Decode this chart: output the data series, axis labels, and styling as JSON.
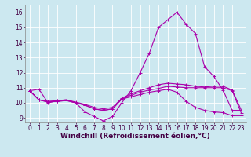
{
  "xlabel": "Windchill (Refroidissement éolien,°C)",
  "xlim": [
    -0.5,
    23.5
  ],
  "ylim": [
    8.7,
    16.5
  ],
  "yticks": [
    9,
    10,
    11,
    12,
    13,
    14,
    15,
    16
  ],
  "xticks": [
    0,
    1,
    2,
    3,
    4,
    5,
    6,
    7,
    8,
    9,
    10,
    11,
    12,
    13,
    14,
    15,
    16,
    17,
    18,
    19,
    20,
    21,
    22,
    23
  ],
  "bg_color": "#cce8f0",
  "line_color": "#aa00aa",
  "grid_color": "#ffffff",
  "lines": [
    [
      10.8,
      10.9,
      10.0,
      10.15,
      10.2,
      10.0,
      9.4,
      9.1,
      8.8,
      9.1,
      10.0,
      10.8,
      12.0,
      13.3,
      15.0,
      15.5,
      16.0,
      15.2,
      14.6,
      12.4,
      11.75,
      10.85,
      9.5,
      9.5
    ],
    [
      10.8,
      10.2,
      10.1,
      10.15,
      10.2,
      10.05,
      9.9,
      9.7,
      9.6,
      9.7,
      10.3,
      10.6,
      10.8,
      11.0,
      11.2,
      11.3,
      11.25,
      11.2,
      11.1,
      11.05,
      11.1,
      11.1,
      10.85,
      9.5
    ],
    [
      10.8,
      10.2,
      10.05,
      10.1,
      10.15,
      10.0,
      9.85,
      9.6,
      9.5,
      9.6,
      10.25,
      10.5,
      10.7,
      10.85,
      10.95,
      11.1,
      11.05,
      11.0,
      11.0,
      11.0,
      11.0,
      11.0,
      10.8,
      9.3
    ],
    [
      10.8,
      10.2,
      10.05,
      10.1,
      10.15,
      10.0,
      9.85,
      9.6,
      9.5,
      9.6,
      10.25,
      10.4,
      10.55,
      10.7,
      10.8,
      10.9,
      10.7,
      10.1,
      9.7,
      9.5,
      9.4,
      9.35,
      9.15,
      9.15
    ]
  ],
  "marker": "+",
  "markersize": 3,
  "linewidth": 0.8,
  "xlabel_fontsize": 6.5,
  "tick_fontsize": 5.5,
  "figsize": [
    3.2,
    2.0
  ],
  "dpi": 100
}
